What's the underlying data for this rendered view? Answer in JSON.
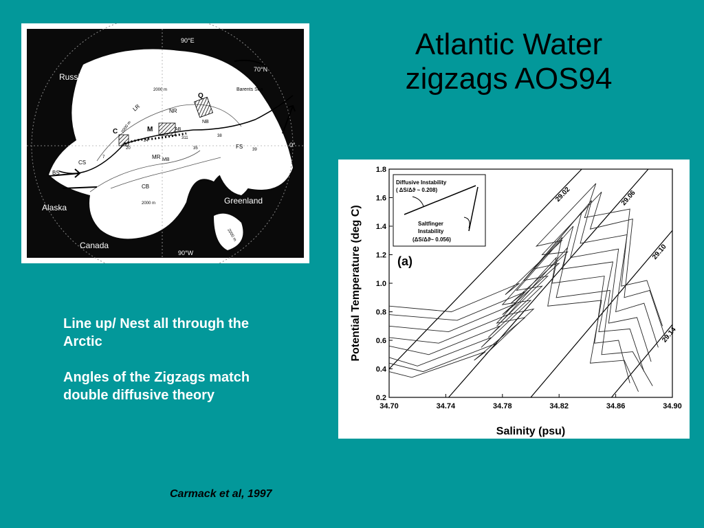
{
  "slide": {
    "title_line1": "Atlantic Water",
    "title_line2": "zigzags AOS94",
    "bullets": [
      "Line up/ Nest all through the Arctic",
      "Angles of the Zigzags match double diffusive theory"
    ],
    "citation": "Carmack et al, 1997"
  },
  "map": {
    "labels": {
      "russia": "Russia",
      "alaska": "Alaska",
      "canada": "Canada",
      "greenland": "Greenland",
      "barents": "Barents Sea",
      "lat70": "70°N",
      "lon90e": "90°E",
      "lon90w": "90°W",
      "lon0": "0°",
      "depth1": "2000 m",
      "depth2": "2000 m",
      "depth3": "2000 m",
      "depth4": "2000 m",
      "lr": "LR",
      "nr": "NR",
      "mr": "MR",
      "mb": "MB",
      "ab": "AB",
      "cb": "CB",
      "nb": "NB",
      "fs": "FS",
      "bs": "BS",
      "cs": "CS",
      "q": "Q",
      "m": "M",
      "c": "C",
      "st20": "20",
      "st24": "24",
      "st7": "7",
      "st311": "311",
      "st35": "35",
      "st38": "38",
      "st39": "39"
    }
  },
  "chart_data": {
    "type": "line",
    "title": "",
    "panel_label": "(a)",
    "xlabel": "Salinity (psu)",
    "ylabel": "Potential Temperature (deg C)",
    "xlim": [
      34.7,
      34.9
    ],
    "ylim": [
      0.2,
      1.8
    ],
    "xticks": [
      "34.70",
      "34.74",
      "34.78",
      "34.82",
      "34.86",
      "34.90"
    ],
    "yticks": [
      "0.2",
      "0.4",
      "0.6",
      "0.8",
      "1.0",
      "1.2",
      "1.4",
      "1.6",
      "1.8"
    ],
    "isopycnals": [
      {
        "label": "29.02",
        "points": [
          [
            34.7,
            0.4
          ],
          [
            34.836,
            1.8
          ]
        ]
      },
      {
        "label": "29.06",
        "points": [
          [
            34.742,
            0.2
          ],
          [
            34.883,
            1.8
          ]
        ]
      },
      {
        "label": "29.10",
        "points": [
          [
            34.8,
            0.2
          ],
          [
            34.9,
            1.37
          ]
        ]
      },
      {
        "label": "29.14",
        "points": [
          [
            34.857,
            0.2
          ],
          [
            34.9,
            0.71
          ]
        ]
      }
    ],
    "series": [
      {
        "x": [
          34.87,
          34.862,
          34.845,
          34.852,
          34.815,
          34.822,
          34.78,
          34.8,
          34.765,
          34.772,
          34.72,
          34.7
        ],
        "y": [
          0.3,
          0.6,
          0.58,
          1.05,
          1.0,
          1.32,
          0.85,
          0.88,
          0.55,
          0.62,
          0.42,
          0.48
        ]
      },
      {
        "x": [
          34.88,
          34.87,
          34.848,
          34.858,
          34.822,
          34.83,
          34.79,
          34.808,
          34.77,
          34.778,
          34.728,
          34.7
        ],
        "y": [
          0.38,
          0.68,
          0.66,
          1.15,
          1.1,
          1.4,
          0.95,
          0.98,
          0.62,
          0.7,
          0.5,
          0.56
        ]
      },
      {
        "x": [
          34.885,
          34.875,
          34.855,
          34.862,
          34.828,
          34.836,
          34.795,
          34.812,
          34.776,
          34.784,
          34.735,
          34.7
        ],
        "y": [
          0.45,
          0.76,
          0.72,
          1.24,
          1.18,
          1.5,
          1.02,
          1.05,
          0.7,
          0.78,
          0.58,
          0.62
        ]
      },
      {
        "x": [
          34.89,
          34.88,
          34.86,
          34.868,
          34.835,
          34.843,
          34.802,
          34.82,
          34.78,
          34.79,
          34.742,
          34.7
        ],
        "y": [
          0.55,
          0.86,
          0.8,
          1.34,
          1.28,
          1.58,
          1.1,
          1.14,
          0.78,
          0.86,
          0.66,
          0.7
        ]
      },
      {
        "x": [
          34.895,
          34.884,
          34.866,
          34.872,
          34.842,
          34.85,
          34.808,
          34.826,
          34.786,
          34.796,
          34.748,
          34.7
        ],
        "y": [
          0.62,
          0.95,
          0.9,
          1.45,
          1.38,
          1.64,
          1.2,
          1.22,
          0.86,
          0.94,
          0.74,
          0.78
        ]
      },
      {
        "x": [
          34.886,
          34.872,
          34.85,
          34.856,
          34.818,
          34.826,
          34.784,
          34.802,
          34.768,
          34.776,
          34.724,
          34.7
        ],
        "y": [
          0.28,
          0.52,
          0.5,
          0.95,
          0.9,
          1.25,
          0.78,
          0.82,
          0.5,
          0.58,
          0.38,
          0.44
        ]
      },
      {
        "x": [
          34.876,
          34.866,
          34.842,
          34.85,
          34.812,
          34.818,
          34.776,
          34.796,
          34.76,
          34.768,
          34.716,
          34.7
        ],
        "y": [
          0.24,
          0.46,
          0.44,
          0.88,
          0.84,
          1.18,
          0.72,
          0.76,
          0.46,
          0.52,
          0.34,
          0.38
        ]
      },
      {
        "x": [
          34.893,
          34.882,
          34.864,
          34.87,
          34.838,
          34.846,
          34.804,
          34.822,
          34.782,
          34.792,
          34.744,
          34.7
        ],
        "y": [
          0.7,
          1.02,
          0.98,
          1.52,
          1.46,
          1.7,
          1.26,
          1.3,
          0.92,
          1.0,
          0.8,
          0.84
        ]
      }
    ],
    "inset": {
      "line1": "Diffusive Instability",
      "line2": "( ΔS/Δϑ ~ 0.208)",
      "line3": "Saltfinger",
      "line4": "Instability",
      "line5": "(ΔS/Δϑ~ 0.056)"
    }
  }
}
